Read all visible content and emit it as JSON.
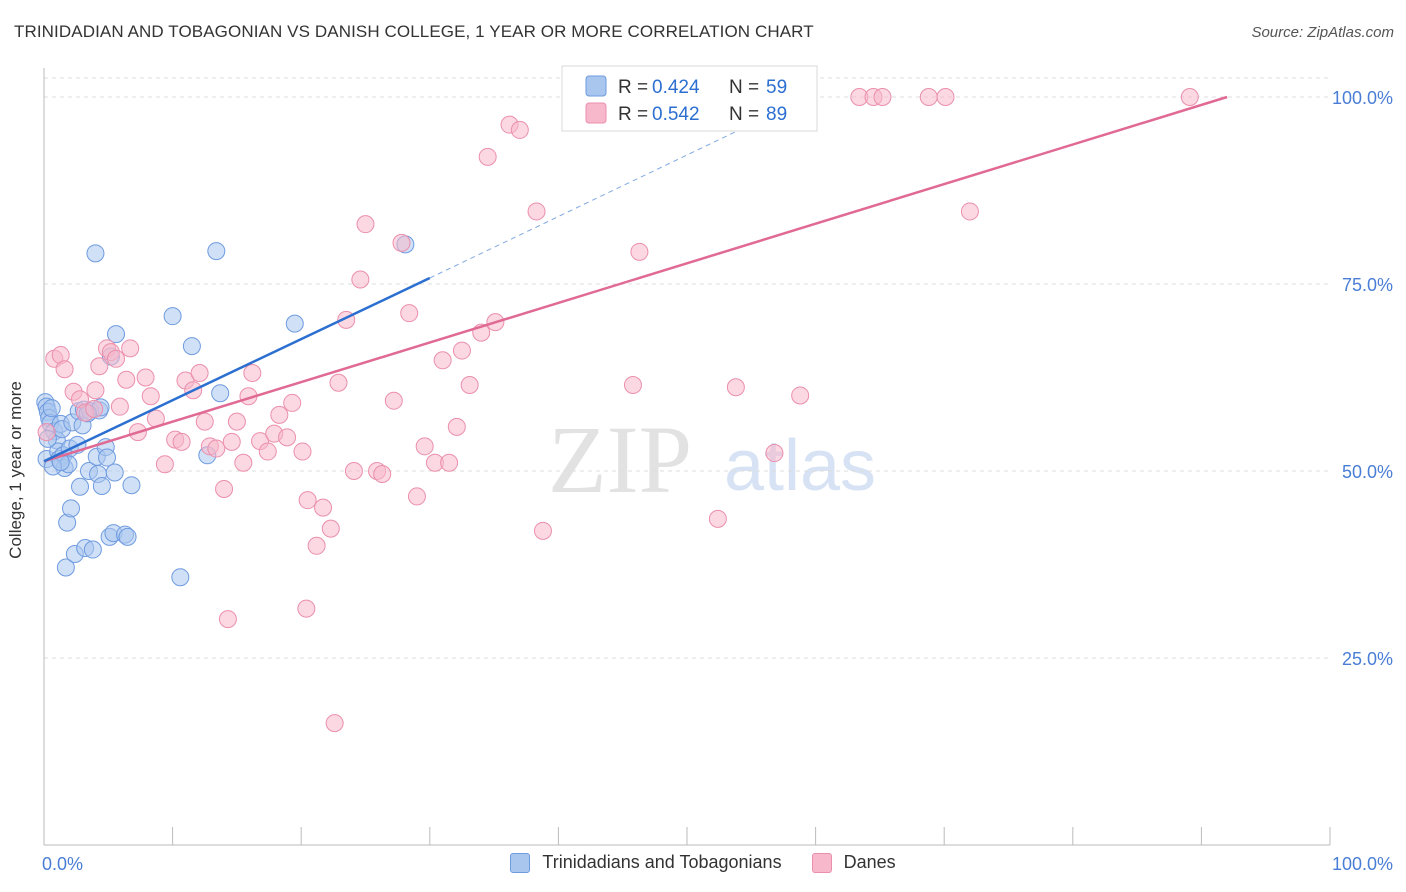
{
  "header": {
    "title": "TRINIDADIAN AND TOBAGONIAN VS DANISH COLLEGE, 1 YEAR OR MORE CORRELATION CHART",
    "source": "Source: ZipAtlas.com"
  },
  "watermark": {
    "part1": "ZIP",
    "part2": "atlas"
  },
  "legend_top": {
    "rows": [
      {
        "r_label": "R = ",
        "r_value": "0.424",
        "n_label": "N = ",
        "n_value": "59"
      },
      {
        "r_label": "R = ",
        "r_value": "0.542",
        "n_label": "N = ",
        "n_value": "89"
      }
    ]
  },
  "legend_bottom": {
    "items": [
      {
        "label": "Trinidadians and Tobagonians"
      },
      {
        "label": "Danes"
      }
    ]
  },
  "colors": {
    "blue_fill": "#a9c6ef",
    "blue_stroke": "#6f9be0",
    "blue_line": "#2b6fd0",
    "pink_fill": "#f7b8cb",
    "pink_stroke": "#eb8fad",
    "pink_line": "#e06a94",
    "tick_label": "#4a7ed6",
    "grid": "#dddddd"
  },
  "chart_data": {
    "type": "scatter",
    "title": "TRINIDADIAN AND TOBAGONIAN VS DANISH COLLEGE, 1 YEAR OR MORE CORRELATION CHART",
    "xlabel": "",
    "ylabel": "College, 1 year or more",
    "xlim": [
      0,
      100
    ],
    "ylim": [
      0,
      104
    ],
    "x_tick_labels": [
      "0.0%",
      "100.0%"
    ],
    "y_ticks": [
      25,
      50,
      75,
      100
    ],
    "y_tick_labels": [
      "25.0%",
      "50.0%",
      "75.0%",
      "100.0%"
    ],
    "grid": true,
    "legend_position": "top-center",
    "series": [
      {
        "name": "Trinidadians and Tobagonians",
        "color": "#a9c6ef",
        "r": 0.424,
        "n": 59,
        "trend": {
          "x0": 0,
          "y0": 51.3,
          "x1": 30,
          "y1": 75.8,
          "dashed_to_x": 57,
          "dashed_to_y": 98
        },
        "points": [
          [
            0.1,
            59.2
          ],
          [
            0.2,
            58.6
          ],
          [
            0.2,
            51.6
          ],
          [
            0.3,
            57.9
          ],
          [
            0.4,
            57.1
          ],
          [
            0.5,
            56.4
          ],
          [
            0.6,
            58.4
          ],
          [
            0.8,
            55.3
          ],
          [
            1.0,
            54.1
          ],
          [
            1.1,
            52.6
          ],
          [
            1.2,
            51.6
          ],
          [
            1.3,
            56.3
          ],
          [
            1.4,
            55.6
          ],
          [
            1.5,
            52.1
          ],
          [
            1.6,
            50.4
          ],
          [
            1.7,
            37.1
          ],
          [
            1.8,
            43.1
          ],
          [
            2.0,
            53.0
          ],
          [
            2.1,
            45.0
          ],
          [
            2.2,
            56.5
          ],
          [
            2.4,
            38.9
          ],
          [
            2.7,
            58.0
          ],
          [
            2.8,
            47.9
          ],
          [
            3.0,
            56.1
          ],
          [
            3.1,
            58.2
          ],
          [
            3.2,
            39.7
          ],
          [
            3.5,
            50.0
          ],
          [
            3.6,
            58.0
          ],
          [
            3.8,
            39.5
          ],
          [
            4.0,
            79.1
          ],
          [
            4.1,
            51.9
          ],
          [
            4.2,
            49.6
          ],
          [
            4.3,
            58.1
          ],
          [
            4.4,
            58.5
          ],
          [
            4.5,
            48.0
          ],
          [
            4.8,
            53.2
          ],
          [
            4.9,
            51.8
          ],
          [
            5.1,
            41.2
          ],
          [
            5.2,
            65.3
          ],
          [
            5.4,
            41.7
          ],
          [
            5.5,
            49.8
          ],
          [
            5.6,
            68.3
          ],
          [
            6.3,
            41.5
          ],
          [
            6.5,
            41.2
          ],
          [
            6.8,
            48.1
          ],
          [
            10.0,
            70.7
          ],
          [
            10.6,
            35.8
          ],
          [
            11.5,
            66.7
          ],
          [
            12.7,
            52.1
          ],
          [
            13.4,
            79.4
          ],
          [
            13.7,
            60.4
          ],
          [
            19.5,
            69.7
          ],
          [
            28.1,
            80.3
          ],
          [
            0.3,
            54.3
          ],
          [
            1.9,
            50.9
          ],
          [
            2.6,
            53.5
          ],
          [
            0.7,
            50.6
          ],
          [
            3.4,
            57.7
          ],
          [
            1.3,
            51.2
          ]
        ]
      },
      {
        "name": "Danes",
        "color": "#f7b8cb",
        "r": 0.542,
        "n": 89,
        "trend": {
          "x0": 0,
          "y0": 51.3,
          "x1": 92,
          "y1": 100
        },
        "points": [
          [
            0.2,
            55.2
          ],
          [
            0.8,
            65.0
          ],
          [
            1.3,
            65.5
          ],
          [
            1.6,
            63.6
          ],
          [
            2.3,
            60.6
          ],
          [
            2.8,
            59.6
          ],
          [
            3.2,
            57.8
          ],
          [
            3.9,
            58.3
          ],
          [
            4.0,
            60.8
          ],
          [
            4.3,
            64.0
          ],
          [
            4.9,
            66.4
          ],
          [
            5.2,
            65.9
          ],
          [
            5.6,
            65.0
          ],
          [
            5.9,
            58.6
          ],
          [
            6.4,
            62.2
          ],
          [
            6.7,
            66.4
          ],
          [
            7.3,
            55.2
          ],
          [
            7.9,
            62.5
          ],
          [
            8.3,
            60.0
          ],
          [
            8.7,
            57.0
          ],
          [
            9.4,
            50.9
          ],
          [
            10.2,
            54.2
          ],
          [
            10.7,
            53.9
          ],
          [
            11.0,
            62.1
          ],
          [
            11.6,
            60.8
          ],
          [
            12.1,
            63.1
          ],
          [
            12.5,
            56.6
          ],
          [
            12.9,
            53.3
          ],
          [
            13.4,
            53.0
          ],
          [
            14.0,
            47.6
          ],
          [
            14.6,
            53.9
          ],
          [
            15.0,
            56.6
          ],
          [
            15.5,
            51.1
          ],
          [
            15.9,
            60.0
          ],
          [
            16.2,
            63.1
          ],
          [
            16.8,
            54.0
          ],
          [
            17.4,
            52.6
          ],
          [
            17.9,
            55.0
          ],
          [
            18.3,
            57.5
          ],
          [
            18.9,
            54.5
          ],
          [
            19.3,
            59.1
          ],
          [
            20.1,
            52.6
          ],
          [
            20.5,
            46.1
          ],
          [
            21.2,
            40.0
          ],
          [
            21.7,
            45.1
          ],
          [
            22.3,
            42.3
          ],
          [
            22.6,
            16.3
          ],
          [
            22.9,
            61.8
          ],
          [
            23.5,
            70.2
          ],
          [
            24.1,
            50.0
          ],
          [
            24.6,
            75.6
          ],
          [
            25.0,
            83.0
          ],
          [
            25.9,
            50.0
          ],
          [
            26.3,
            49.6
          ],
          [
            27.2,
            59.4
          ],
          [
            27.8,
            80.5
          ],
          [
            28.4,
            71.1
          ],
          [
            29.0,
            46.6
          ],
          [
            29.6,
            53.3
          ],
          [
            30.4,
            51.1
          ],
          [
            31.0,
            64.8
          ],
          [
            31.5,
            51.1
          ],
          [
            32.1,
            55.9
          ],
          [
            32.5,
            66.1
          ],
          [
            33.1,
            61.5
          ],
          [
            34.0,
            68.5
          ],
          [
            35.1,
            69.9
          ],
          [
            36.2,
            96.3
          ],
          [
            37.0,
            95.6
          ],
          [
            38.3,
            84.7
          ],
          [
            38.8,
            42.0
          ],
          [
            42.0,
            100.0
          ],
          [
            43.6,
            99.8
          ],
          [
            45.8,
            61.5
          ],
          [
            46.3,
            79.3
          ],
          [
            52.4,
            43.6
          ],
          [
            53.8,
            61.2
          ],
          [
            56.8,
            52.4
          ],
          [
            58.8,
            60.1
          ],
          [
            63.4,
            100.0
          ],
          [
            64.5,
            100.0
          ],
          [
            65.2,
            100.0
          ],
          [
            68.8,
            100.0
          ],
          [
            70.1,
            100.0
          ],
          [
            72.0,
            84.7
          ],
          [
            89.1,
            100.0
          ],
          [
            14.3,
            30.2
          ],
          [
            20.4,
            31.6
          ],
          [
            34.5,
            92.0
          ]
        ]
      }
    ]
  }
}
